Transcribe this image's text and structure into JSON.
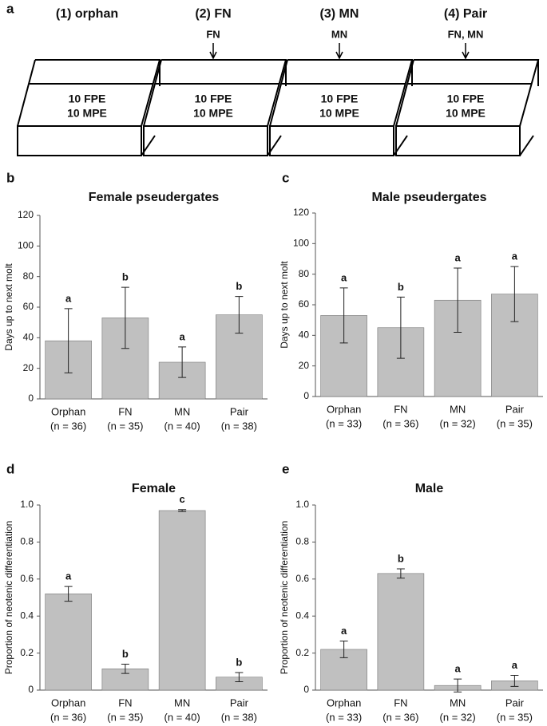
{
  "panel_a": {
    "label": "a",
    "boxes": [
      {
        "title": "(1) orphan",
        "contents": [
          "10 FPE",
          "10 MPE"
        ]
      },
      {
        "title": "(2) FN",
        "arrow": "FN",
        "contents": [
          "10 FPE",
          "10 MPE"
        ]
      },
      {
        "title": "(3) MN",
        "arrow": "MN",
        "contents": [
          "10 FPE",
          "10 MPE"
        ]
      },
      {
        "title": "(4) Pair",
        "arrow": "FN, MN",
        "contents": [
          "10 FPE",
          "10 MPE"
        ]
      }
    ]
  },
  "chart_data": [
    {
      "type": "bar",
      "panel": "b",
      "title": "Female pseudergates",
      "ylabel": "Days up to next molt",
      "categories": [
        "Orphan",
        "FN",
        "MN",
        "Pair"
      ],
      "category_notes": [
        "(n = 36)",
        "(n = 35)",
        "(n = 40)",
        "(n = 38)"
      ],
      "values": [
        38,
        53,
        24,
        55
      ],
      "errors": [
        21,
        20,
        10,
        12
      ],
      "annotations": [
        "a",
        "b",
        "a",
        "b"
      ],
      "ylim": [
        0,
        120
      ],
      "yticks": [
        0,
        20,
        40,
        60,
        80,
        100,
        120
      ],
      "color": "#c0c0c0"
    },
    {
      "type": "bar",
      "panel": "c",
      "title": "Male pseudergates",
      "ylabel": "Days up to next molt",
      "categories": [
        "Orphan",
        "FN",
        "MN",
        "Pair"
      ],
      "category_notes": [
        "(n = 33)",
        "(n = 36)",
        "(n = 32)",
        "(n = 35)"
      ],
      "values": [
        53,
        45,
        63,
        67
      ],
      "errors": [
        18,
        20,
        21,
        18
      ],
      "annotations": [
        "a",
        "b",
        "a",
        "a"
      ],
      "ylim": [
        0,
        120
      ],
      "yticks": [
        0,
        20,
        40,
        60,
        80,
        100,
        120
      ],
      "color": "#c0c0c0"
    },
    {
      "type": "bar",
      "panel": "d",
      "title": "Female",
      "ylabel": "Proportion of neotenic differentiation",
      "categories": [
        "Orphan",
        "FN",
        "MN",
        "Pair"
      ],
      "category_notes": [
        "(n = 36)",
        "(n = 35)",
        "(n = 40)",
        "(n = 38)"
      ],
      "values": [
        0.52,
        0.115,
        0.97,
        0.07
      ],
      "errors": [
        0.04,
        0.025,
        0.005,
        0.025
      ],
      "annotations": [
        "a",
        "b",
        "c",
        "b"
      ],
      "ylim": [
        0,
        1
      ],
      "yticks": [
        0,
        0.2,
        0.4,
        0.6,
        0.8,
        {
          "value": 1,
          "label": "1.0"
        }
      ],
      "color": "#c0c0c0"
    },
    {
      "type": "bar",
      "panel": "e",
      "title": "Male",
      "ylabel": "Proportion of neotenic differentiation",
      "categories": [
        "Orphan",
        "FN",
        "MN",
        "Pair"
      ],
      "category_notes": [
        "(n = 33)",
        "(n = 36)",
        "(n = 32)",
        "(n = 35)"
      ],
      "values": [
        0.22,
        0.63,
        0.025,
        0.05
      ],
      "errors": [
        0.045,
        0.025,
        0.035,
        0.03
      ],
      "annotations": [
        "a",
        "b",
        "a",
        "a"
      ],
      "ylim": [
        0,
        1
      ],
      "yticks": [
        0,
        0.2,
        0.4,
        0.6,
        0.8,
        {
          "value": 1,
          "label": "1.0"
        }
      ],
      "color": "#c0c0c0"
    }
  ]
}
